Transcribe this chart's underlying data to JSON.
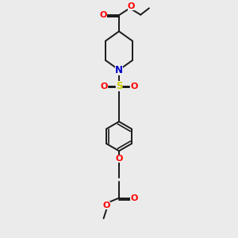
{
  "bg_color": "#ebebeb",
  "bond_color": "#1a1a1a",
  "O_color": "#ff0000",
  "N_color": "#0000cc",
  "S_color": "#cccc00",
  "line_width": 1.4,
  "fig_width": 3.0,
  "fig_height": 3.0,
  "xlim": [
    -1.0,
    1.0
  ],
  "ylim": [
    -3.0,
    3.0
  ]
}
